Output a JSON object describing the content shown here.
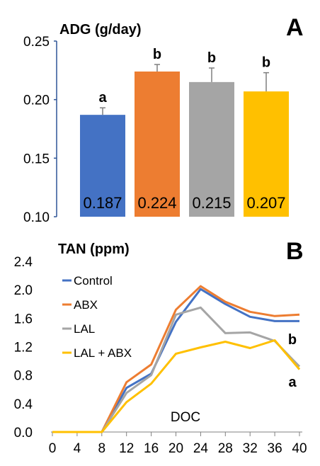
{
  "chart_data": [
    {
      "type": "bar",
      "panel": "A",
      "title": "ADG (g/day)",
      "categories": [
        "",
        "",
        "",
        ""
      ],
      "values": [
        0.187,
        0.224,
        0.215,
        0.207
      ],
      "errors": [
        0.006,
        0.006,
        0.012,
        0.016
      ],
      "value_labels": [
        "0.187",
        "0.224",
        "0.215",
        "0.207"
      ],
      "significance": [
        "a",
        "b",
        "b",
        "b"
      ],
      "colors": [
        "#4472C4",
        "#ED7D31",
        "#A5A5A5",
        "#FFC000"
      ],
      "ylim": [
        0.1,
        0.25
      ],
      "yticks": [
        "0.10",
        "0.15",
        "0.20",
        "0.25"
      ],
      "grid": false
    },
    {
      "type": "line",
      "panel": "B",
      "title": "TAN (ppm)",
      "xlabel": "DOC",
      "x": [
        0,
        4,
        8,
        12,
        16,
        20,
        24,
        28,
        32,
        36,
        40
      ],
      "xticks": [
        "0",
        "4",
        "8",
        "12",
        "16",
        "20",
        "24",
        "28",
        "32",
        "36",
        "40"
      ],
      "ylim": [
        0.0,
        2.4
      ],
      "yticks": [
        "0.0",
        "0.4",
        "0.8",
        "1.2",
        "1.6",
        "2.0",
        "2.4"
      ],
      "legend_position": "top-left",
      "grid": false,
      "series": [
        {
          "name": "Control",
          "color": "#4472C4",
          "values": [
            0,
            0,
            0,
            0.62,
            0.82,
            1.55,
            2.01,
            1.8,
            1.62,
            1.56,
            1.56
          ]
        },
        {
          "name": "ABX",
          "color": "#ED7D31",
          "values": [
            0,
            0,
            0,
            0.7,
            0.95,
            1.72,
            2.05,
            1.83,
            1.69,
            1.63,
            1.65
          ]
        },
        {
          "name": "LAL",
          "color": "#A5A5A5",
          "values": [
            0,
            0,
            0,
            0.55,
            0.8,
            1.65,
            1.75,
            1.39,
            1.4,
            1.28,
            0.92
          ]
        },
        {
          "name": "LAL + ABX",
          "color": "#FFC000",
          "values": [
            0,
            0,
            0,
            0.42,
            0.68,
            1.1,
            1.19,
            1.27,
            1.18,
            1.29,
            0.88
          ]
        }
      ],
      "annotations": [
        "b",
        "a"
      ]
    }
  ]
}
